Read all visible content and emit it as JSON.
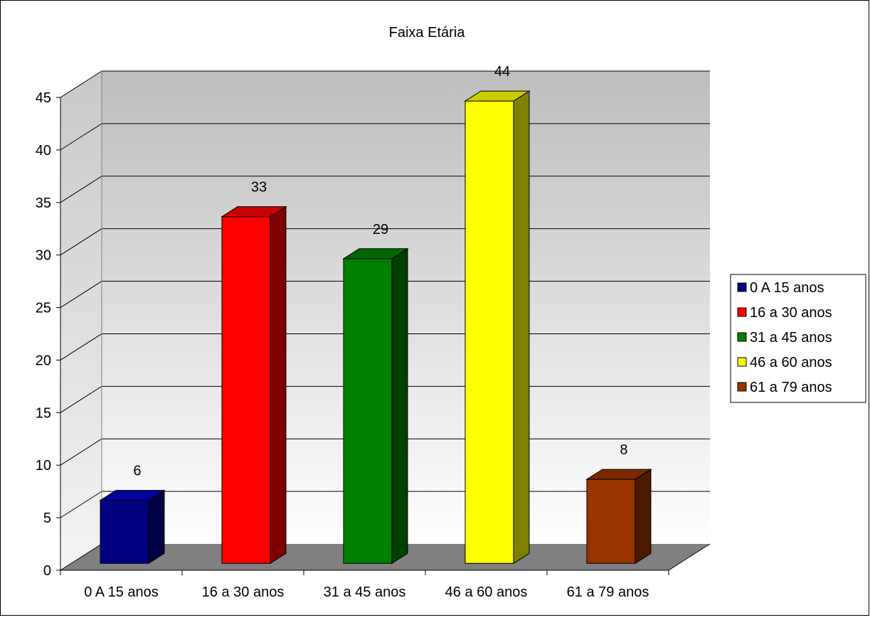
{
  "chart_data": {
    "type": "bar",
    "title": "Faixa Etária",
    "categories": [
      "0 A 15 anos",
      "16 a 30 anos",
      "31 a 45 anos",
      "46 a 60 anos",
      "61 a 79 anos"
    ],
    "values": [
      6,
      33,
      29,
      44,
      8
    ],
    "colors": [
      "#000080",
      "#ff0000",
      "#008000",
      "#ffff00",
      "#993300"
    ],
    "side_colors": [
      "#000044",
      "#800000",
      "#004000",
      "#808000",
      "#4d1a00"
    ],
    "top_colors": [
      "#00009a",
      "#cc0000",
      "#006600",
      "#cccc00",
      "#7a2900"
    ],
    "ylim": [
      0,
      45
    ],
    "yticks": [
      0,
      5,
      10,
      15,
      20,
      25,
      30,
      35,
      40,
      45
    ],
    "data_labels": [
      "6",
      "33",
      "29",
      "44",
      "8"
    ],
    "legend": [
      "0 A 15 anos",
      "16 a 30 anos",
      "31 a 45 anos",
      "46 a 60 anos",
      "61 a 79 anos"
    ],
    "legend_position": "right",
    "grid": true,
    "style": "3d-clustered-column",
    "xlabel": "",
    "ylabel": ""
  }
}
